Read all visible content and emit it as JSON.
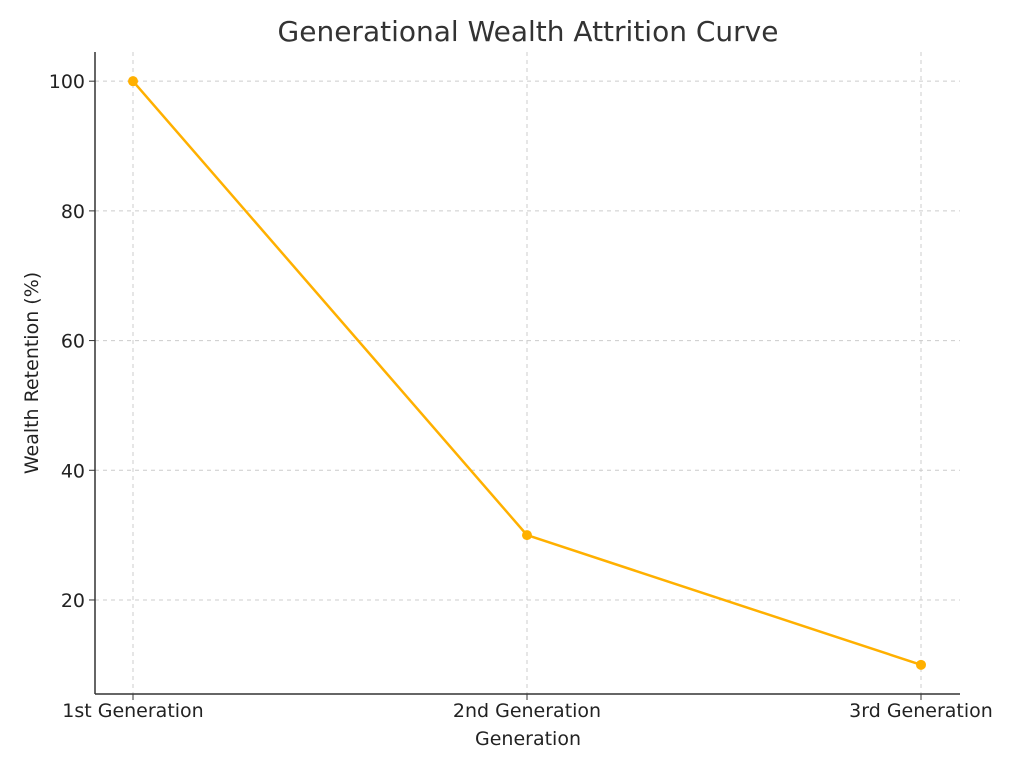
{
  "chart_data": {
    "type": "line",
    "title": "Generational Wealth Attrition Curve",
    "xlabel": "Generation",
    "ylabel": "Wealth Retention (%)",
    "categories": [
      "1st Generation",
      "2nd Generation",
      "3rd Generation"
    ],
    "series": [
      {
        "values": [
          100,
          30,
          10
        ],
        "color": "#FFB000"
      }
    ],
    "yticks": [
      20,
      40,
      60,
      80,
      100
    ],
    "ylim": [
      5.5,
      104.5
    ],
    "grid": true,
    "marker": "circle"
  }
}
